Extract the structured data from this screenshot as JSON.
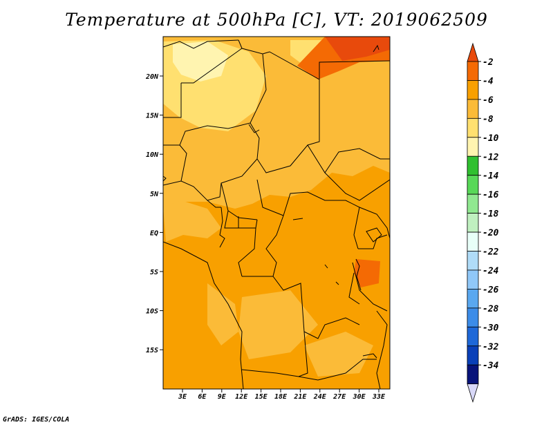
{
  "title": "Temperature at 500hPa [C], VT: 2019062509",
  "credit": "GrADS: IGES/COLA",
  "map": {
    "lon_ticks": [
      "3E",
      "6E",
      "9E",
      "12E",
      "15E",
      "18E",
      "21E",
      "24E",
      "27E",
      "30E",
      "33E"
    ],
    "lat_ticks": [
      "20N",
      "15N",
      "10N",
      "5N",
      "EQ",
      "5S",
      "10S",
      "15S"
    ]
  },
  "legend": {
    "labels": [
      "-2",
      "-4",
      "-6",
      "-8",
      "-10",
      "-12",
      "-14",
      "-16",
      "-18",
      "-20",
      "-22",
      "-24",
      "-26",
      "-28",
      "-30",
      "-32",
      "-34"
    ],
    "colors": [
      "#e84a0c",
      "#f46a04",
      "#f8a000",
      "#fbbb38",
      "#ffe070",
      "#fff4b0",
      "#30c030",
      "#58d858",
      "#90e890",
      "#c0f0c0",
      "#e8fff8",
      "#b0dcf8",
      "#90c8f8",
      "#5aa8f0",
      "#3c8ce8",
      "#1e68d8",
      "#0a40b8",
      "#08137a",
      "#d8d8f8"
    ]
  },
  "colors": {
    "field_base": "#f8a000",
    "field_light": "#fbbb38",
    "field_lighter": "#ffe070",
    "field_palest": "#fff4b0",
    "field_warm": "#f46a04",
    "field_warmest": "#e84a0c"
  }
}
